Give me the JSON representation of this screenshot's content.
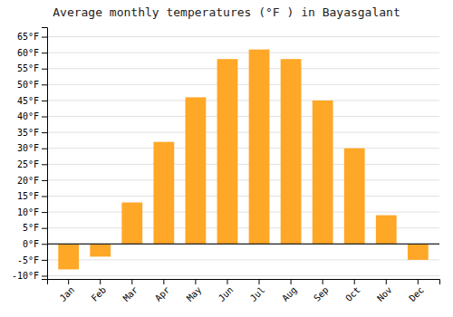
{
  "chart_data": {
    "type": "bar",
    "title": "Average monthly temperatures (°F ) in Bayasgalant",
    "categories": [
      "Jan",
      "Feb",
      "Mar",
      "Apr",
      "May",
      "Jun",
      "Jul",
      "Aug",
      "Sep",
      "Oct",
      "Nov",
      "Dec"
    ],
    "values": [
      -8,
      -4,
      13,
      32,
      46,
      58,
      61,
      58,
      45,
      30,
      9,
      -5
    ],
    "color": "#FFA726",
    "ylim": [
      -11,
      68
    ],
    "yticks": [
      {
        "value": -10,
        "label": "-10°F"
      },
      {
        "value": -5,
        "label": "-5°F"
      },
      {
        "value": 0,
        "label": "0°F"
      },
      {
        "value": 5,
        "label": "5°F"
      },
      {
        "value": 10,
        "label": "10°F"
      },
      {
        "value": 15,
        "label": "15°F"
      },
      {
        "value": 20,
        "label": "20°F"
      },
      {
        "value": 25,
        "label": "25°F"
      },
      {
        "value": 30,
        "label": "30°F"
      },
      {
        "value": 35,
        "label": "35°F"
      },
      {
        "value": 40,
        "label": "40°F"
      },
      {
        "value": 45,
        "label": "45°F"
      },
      {
        "value": 50,
        "label": "50°F"
      },
      {
        "value": 55,
        "label": "55°F"
      },
      {
        "value": 60,
        "label": "60°F"
      },
      {
        "value": 65,
        "label": "65°F"
      }
    ],
    "grid": true
  }
}
